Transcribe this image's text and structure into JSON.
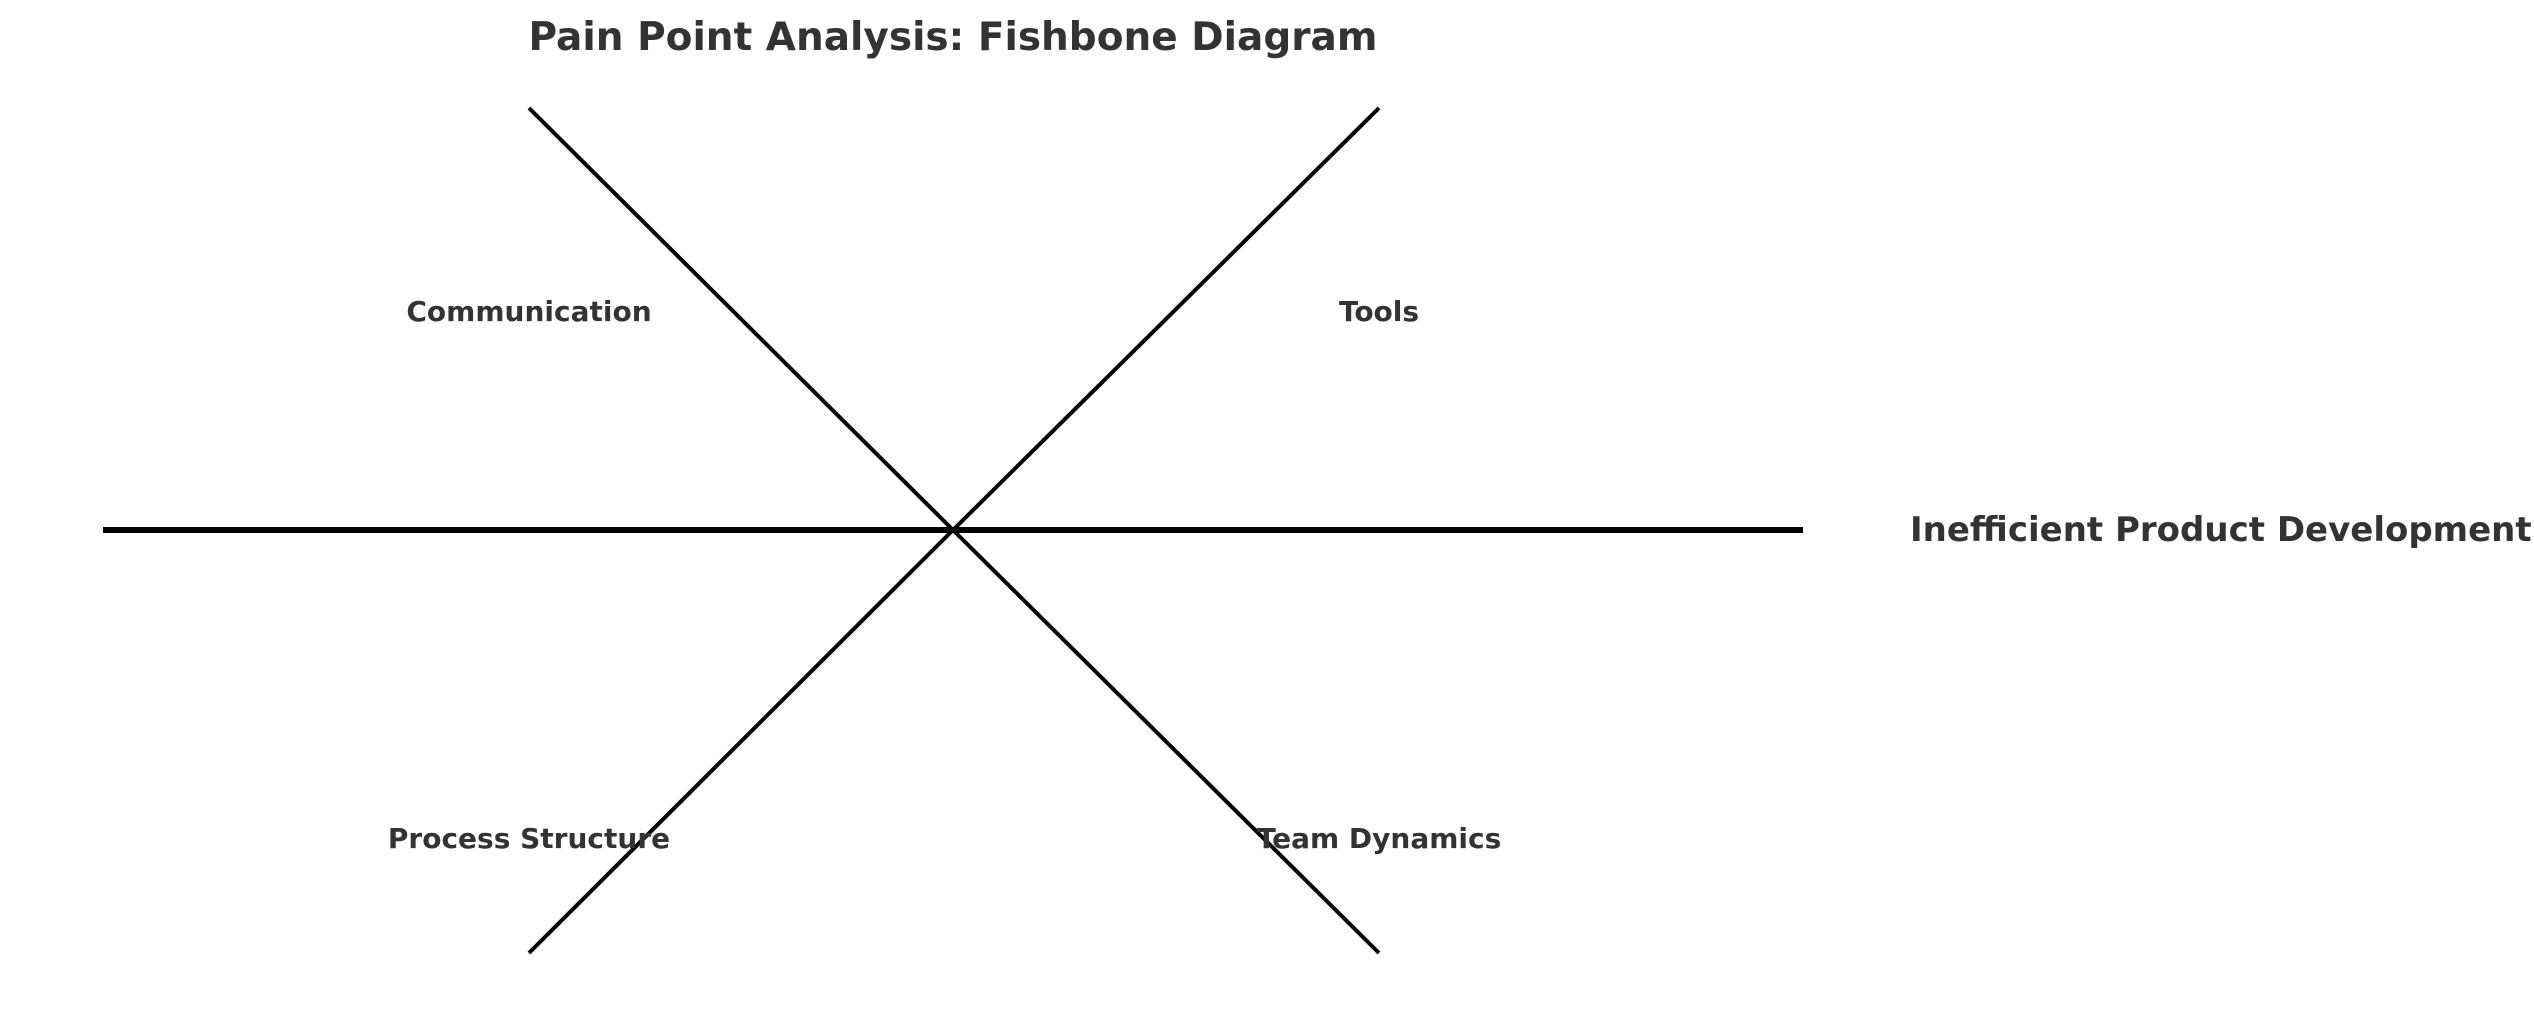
{
  "title": "Pain Point Analysis: Fishbone Diagram",
  "effect": "Inefficient Product Development",
  "categories": {
    "top_left": "Communication",
    "top_right": "Tools",
    "bottom_left": "Process Structure",
    "bottom_right": "Team Dynamics"
  },
  "colors": {
    "text": "#333333",
    "lines": "#000000",
    "background": "#ffffff"
  }
}
